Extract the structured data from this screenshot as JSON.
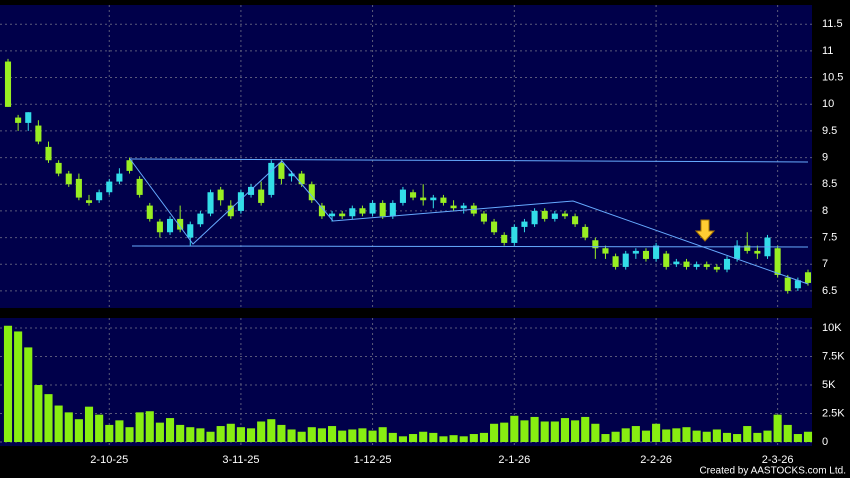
{
  "chart_data": {
    "type": "candlestick",
    "categories": [
      null,
      null,
      null,
      null,
      null,
      null,
      null,
      null,
      null,
      null,
      "2-10-25",
      null,
      null,
      null,
      null,
      null,
      null,
      null,
      null,
      null,
      null,
      null,
      null,
      "3-11-25",
      null,
      null,
      null,
      null,
      null,
      null,
      null,
      null,
      null,
      null,
      null,
      null,
      "1-12-25",
      null,
      null,
      null,
      null,
      null,
      null,
      null,
      null,
      null,
      null,
      null,
      null,
      null,
      "2-1-26",
      null,
      null,
      null,
      null,
      null,
      null,
      null,
      null,
      null,
      null,
      null,
      null,
      null,
      "2-2-26",
      null,
      null,
      null,
      null,
      null,
      null,
      null,
      null,
      null,
      null,
      null,
      "2-3-26",
      null,
      null,
      null
    ],
    "open": [
      10.8,
      9.75,
      9.65,
      9.6,
      9.2,
      8.9,
      8.7,
      8.6,
      8.2,
      8.2,
      8.35,
      8.55,
      8.95,
      8.6,
      8.1,
      7.8,
      7.6,
      7.85,
      7.5,
      7.75,
      7.95,
      8.4,
      8.1,
      8.0,
      8.3,
      8.4,
      8.3,
      8.9,
      8.65,
      8.7,
      8.5,
      8.1,
      7.9,
      7.95,
      7.9,
      8.05,
      7.95,
      8.15,
      7.9,
      8.15,
      8.35,
      8.25,
      8.2,
      8.25,
      8.1,
      8.05,
      8.1,
      7.95,
      7.8,
      7.55,
      7.4,
      7.7,
      7.75,
      8.0,
      7.85,
      7.95,
      7.9,
      7.7,
      7.45,
      7.3,
      7.15,
      6.95,
      7.2,
      7.25,
      7.1,
      7.2,
      7.0,
      7.05,
      6.95,
      7.0,
      6.95,
      6.9,
      7.1,
      7.35,
      7.25,
      7.15,
      7.3,
      6.75,
      6.55,
      6.85
    ],
    "high": [
      10.85,
      9.8,
      9.85,
      9.7,
      9.3,
      8.95,
      8.75,
      8.7,
      8.3,
      8.4,
      8.6,
      8.8,
      9.0,
      8.65,
      8.15,
      7.85,
      7.9,
      8.1,
      7.8,
      8.0,
      8.4,
      8.45,
      8.2,
      8.4,
      8.5,
      8.55,
      8.95,
      8.95,
      8.75,
      8.75,
      8.55,
      8.15,
      8.0,
      8.0,
      8.1,
      8.1,
      8.2,
      8.2,
      8.2,
      8.45,
      8.4,
      8.5,
      8.3,
      8.3,
      8.2,
      8.15,
      8.15,
      8.0,
      7.85,
      7.6,
      7.75,
      7.85,
      8.05,
      8.05,
      8.0,
      8.0,
      7.95,
      7.75,
      7.5,
      7.35,
      7.2,
      7.25,
      7.3,
      7.3,
      7.4,
      7.25,
      7.1,
      7.1,
      7.05,
      7.05,
      7.0,
      7.15,
      7.45,
      7.6,
      7.35,
      7.55,
      7.35,
      6.8,
      6.75,
      6.9
    ],
    "low": [
      9.95,
      9.5,
      9.5,
      9.25,
      8.9,
      8.65,
      8.45,
      8.2,
      8.1,
      8.15,
      8.3,
      8.5,
      8.7,
      8.25,
      7.8,
      7.5,
      7.55,
      7.6,
      7.35,
      7.7,
      7.9,
      8.1,
      7.85,
      7.95,
      8.25,
      8.1,
      8.25,
      8.5,
      8.55,
      8.45,
      8.15,
      7.85,
      7.8,
      7.85,
      7.85,
      7.9,
      7.9,
      7.85,
      7.85,
      8.1,
      8.2,
      8.1,
      8.05,
      8.1,
      8.0,
      7.95,
      7.9,
      7.75,
      7.55,
      7.35,
      7.35,
      7.6,
      7.7,
      7.8,
      7.8,
      7.85,
      7.7,
      7.45,
      7.1,
      7.1,
      6.9,
      6.9,
      7.1,
      7.05,
      7.05,
      6.9,
      6.95,
      6.9,
      6.9,
      6.9,
      6.85,
      6.85,
      7.05,
      7.2,
      7.1,
      7.1,
      6.75,
      6.45,
      6.5,
      6.6
    ],
    "close": [
      9.95,
      9.65,
      9.85,
      9.3,
      8.95,
      8.7,
      8.5,
      8.25,
      8.15,
      8.35,
      8.55,
      8.7,
      8.75,
      8.3,
      7.85,
      7.6,
      7.85,
      7.65,
      7.75,
      7.95,
      8.35,
      8.2,
      7.9,
      8.35,
      8.45,
      8.15,
      8.9,
      8.6,
      8.7,
      8.5,
      8.2,
      7.9,
      7.95,
      7.9,
      8.05,
      7.95,
      8.15,
      7.9,
      8.15,
      8.4,
      8.25,
      8.2,
      8.25,
      8.15,
      8.05,
      8.1,
      7.95,
      7.8,
      7.6,
      7.4,
      7.7,
      7.8,
      8.0,
      7.85,
      7.95,
      7.9,
      7.75,
      7.5,
      7.3,
      7.2,
      6.95,
      7.2,
      7.25,
      7.1,
      7.35,
      6.95,
      7.05,
      6.95,
      7.0,
      6.95,
      6.9,
      7.1,
      7.35,
      7.25,
      7.2,
      7.5,
      6.8,
      6.5,
      6.7,
      6.65
    ],
    "up_color": "#33dde8",
    "down_color": "#99ee22",
    "ylim": [
      6.18,
      11.86
    ],
    "yticks": [
      6.5,
      7,
      7.5,
      8,
      8.5,
      9,
      9.5,
      10,
      10.5,
      11,
      11.5
    ],
    "grid": true,
    "volume": {
      "values": [
        10200,
        9700,
        8300,
        5000,
        4200,
        3200,
        2600,
        2000,
        3100,
        2400,
        1500,
        1900,
        1300,
        2600,
        2700,
        1700,
        2100,
        1500,
        1300,
        1200,
        900,
        1400,
        1600,
        1300,
        1200,
        1800,
        2000,
        1500,
        1100,
        900,
        1300,
        1200,
        1400,
        1000,
        1100,
        1200,
        1000,
        1300,
        800,
        500,
        700,
        900,
        800,
        500,
        600,
        500,
        700,
        800,
        1600,
        1700,
        2300,
        1900,
        2200,
        1800,
        1800,
        2100,
        1900,
        2200,
        1600,
        700,
        900,
        1200,
        1400,
        1000,
        1600,
        1100,
        1200,
        1300,
        1000,
        900,
        1100,
        800,
        700,
        1400,
        800,
        1000,
        2400,
        1500,
        700,
        900
      ],
      "color": "#88ee11",
      "ylim": [
        -350,
        10880
      ],
      "yticks": [
        0,
        {
          "value": 2500,
          "label": "2.5K"
        },
        {
          "value": 5000,
          "label": "5K"
        },
        {
          "value": 7500,
          "label": "7.5K"
        },
        {
          "value": 10000,
          "label": "10K"
        }
      ]
    },
    "credit": "Created by AASTOCKS.com Ltd."
  }
}
